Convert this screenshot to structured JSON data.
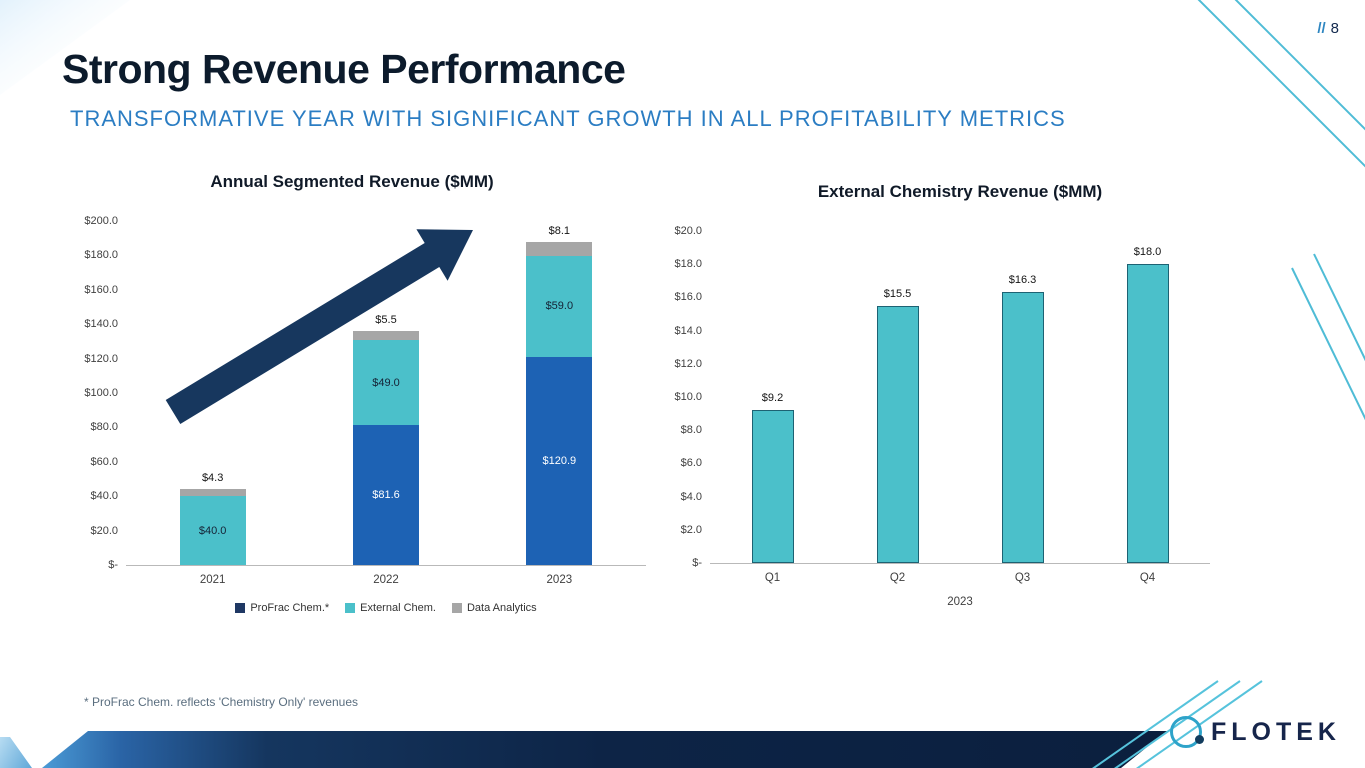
{
  "slide": {
    "page_number_prefix": "//",
    "page_number": "8",
    "title": "Strong Revenue Performance",
    "subtitle": "TRANSFORMATIVE YEAR WITH SIGNIFICANT GROWTH IN ALL PROFITABILITY METRICS",
    "footnote": "* ProFrac Chem. reflects 'Chemistry Only' revenues",
    "logo_text": "FLOTEK"
  },
  "colors": {
    "title_text": "#0c1b2c",
    "subtitle_blue": "#2b7dc3",
    "accent_teal": "#4fbcd6",
    "band_navy": "#0d2446",
    "arrow_navy": "#17375e",
    "profrac_bar": "#1d62b4",
    "profrac_legend": "#1f3864",
    "external_teal": "#4bc0ca",
    "data_gray": "#a6a6a6"
  },
  "chart_data": [
    {
      "type": "bar",
      "stacked": true,
      "title": "Annual Segmented Revenue ($MM)",
      "categories": [
        "2021",
        "2022",
        "2023"
      ],
      "series": [
        {
          "name": "ProFrac Chem.*",
          "color": "#1d62b4",
          "legend_color": "#1f3864",
          "label_color": "#ffffff",
          "label_position": "inside",
          "values": [
            0,
            81.6,
            120.9
          ],
          "labels": [
            "",
            "$81.6",
            "$120.9"
          ]
        },
        {
          "name": "External Chem.",
          "color": "#4bc0ca",
          "legend_color": "#4bc0ca",
          "label_color": "#152235",
          "label_position": "inside",
          "values": [
            40.0,
            49.0,
            59.0
          ],
          "labels": [
            "$40.0",
            "$49.0",
            "$59.0"
          ]
        },
        {
          "name": "Data Analytics",
          "color": "#a6a6a6",
          "legend_color": "#a6a6a6",
          "label_color": "#141414",
          "label_position": "above",
          "values": [
            4.3,
            5.5,
            8.1
          ],
          "labels": [
            "$4.3",
            "$5.5",
            "$8.1"
          ]
        }
      ],
      "xlabel": "",
      "ylabel": "",
      "ylim": [
        0,
        200
      ],
      "ytick_step": 20,
      "yticks": [
        "$-",
        "$20.0",
        "$40.0",
        "$60.0",
        "$80.0",
        "$100.0",
        "$120.0",
        "$140.0",
        "$160.0",
        "$180.0",
        "$200.0"
      ],
      "grid": false,
      "legend_position": "bottom",
      "annotation": "large upward navy growth arrow across plot"
    },
    {
      "type": "bar",
      "stacked": false,
      "title": "External Chemistry Revenue ($MM)",
      "categories": [
        "Q1",
        "Q2",
        "Q3",
        "Q4"
      ],
      "values": [
        9.2,
        15.5,
        16.3,
        18.0
      ],
      "labels": [
        "$9.2",
        "$15.5",
        "$16.3",
        "$18.0"
      ],
      "bar_color": "#4bc0ca",
      "bar_border": "#1d6273",
      "xlabel": "2023",
      "ylabel": "",
      "ylim": [
        0,
        20
      ],
      "ytick_step": 2,
      "yticks": [
        "$-",
        "$2.0",
        "$4.0",
        "$6.0",
        "$8.0",
        "$10.0",
        "$12.0",
        "$14.0",
        "$16.0",
        "$18.0",
        "$20.0"
      ],
      "grid": false,
      "legend_position": "none"
    }
  ]
}
